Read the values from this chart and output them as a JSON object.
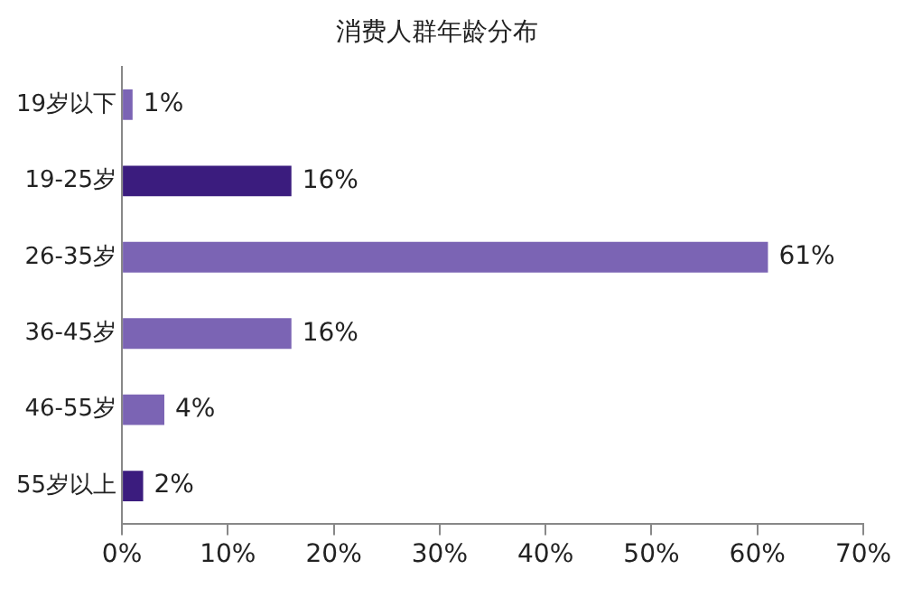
{
  "chart_data": {
    "type": "bar",
    "orientation": "horizontal",
    "title": "消费人群年龄分布",
    "categories": [
      "19岁以下",
      "19-25岁",
      "26-35岁",
      "36-45岁",
      "46-55岁",
      "55岁以上"
    ],
    "values": [
      1,
      16,
      61,
      16,
      4,
      2
    ],
    "colors": [
      "#7b64b4",
      "#3b1c7e",
      "#7b64b4",
      "#7b64b4",
      "#7b64b4",
      "#3b1c7e"
    ],
    "value_labels": [
      "1%",
      "16%",
      "61%",
      "16%",
      "4%",
      "2%"
    ],
    "xlim": [
      0,
      70
    ],
    "xticks": [
      {
        "value": 0,
        "label": "0%"
      },
      {
        "value": 10,
        "label": "10%"
      },
      {
        "value": 20,
        "label": "20%"
      },
      {
        "value": 30,
        "label": "30%"
      },
      {
        "value": 40,
        "label": "40%"
      },
      {
        "value": 50,
        "label": "50%"
      },
      {
        "value": 60,
        "label": "60%"
      },
      {
        "value": 70,
        "label": "70%"
      }
    ],
    "grid": false,
    "legend": false
  }
}
